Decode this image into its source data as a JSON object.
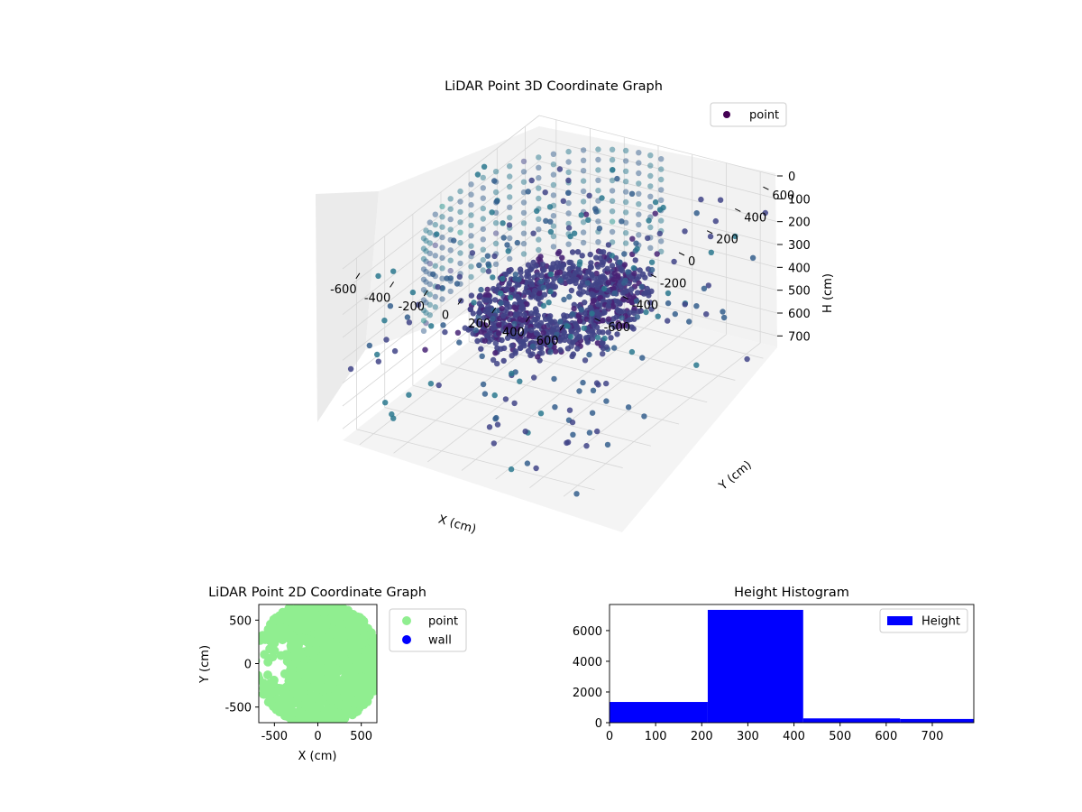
{
  "chart_data": [
    {
      "type": "scatter",
      "projection": "3d",
      "title": "LiDAR Point 3D Coordinate Graph",
      "xlabel": "X (cm)",
      "ylabel": "Y (cm)",
      "zlabel": "H (cm)",
      "xticks": [
        -600,
        -400,
        -200,
        0,
        200,
        400,
        600
      ],
      "yticks": [
        -600,
        -400,
        -200,
        0,
        200,
        400,
        600
      ],
      "zticks": [
        0,
        100,
        200,
        300,
        400,
        500,
        600,
        700
      ],
      "xlim": [
        -700,
        700
      ],
      "ylim": [
        -700,
        700
      ],
      "zlim": [
        0,
        750
      ],
      "z_inverted": true,
      "colormap": "viridis",
      "legend": {
        "placement": "top-right",
        "entries": [
          "point"
        ]
      },
      "legend_color": "#440154",
      "grid": true,
      "series": [
        {
          "name": "point",
          "description_points": "dense ring of points near H 300-400 cm, sparse outliers throughout"
        }
      ]
    },
    {
      "type": "scatter",
      "title": "LiDAR Point 2D Coordinate Graph",
      "xlabel": "X (cm)",
      "ylabel": "Y (cm)",
      "xticks": [
        -500,
        0,
        500
      ],
      "yticks": [
        -500,
        0,
        500
      ],
      "xlim": [
        -680,
        680
      ],
      "ylim": [
        -680,
        680
      ],
      "legend": {
        "placement": "outside-right",
        "entries": [
          "point",
          "wall"
        ]
      },
      "series": [
        {
          "name": "point",
          "color": "#90ee90"
        },
        {
          "name": "wall",
          "color": "#0000ff"
        }
      ]
    },
    {
      "type": "bar",
      "subtype": "histogram",
      "title": "Height Histogram",
      "xticks": [
        0,
        100,
        200,
        300,
        400,
        500,
        600,
        700
      ],
      "yticks": [
        0,
        2000,
        4000,
        6000
      ],
      "xlim": [
        0,
        790
      ],
      "ylim": [
        0,
        7700
      ],
      "bins": [
        {
          "start": 0,
          "end": 213,
          "count": 1350
        },
        {
          "start": 213,
          "end": 420,
          "count": 7350
        },
        {
          "start": 420,
          "end": 630,
          "count": 280
        },
        {
          "start": 630,
          "end": 790,
          "count": 240
        }
      ],
      "color": "#0000ff",
      "legend": {
        "placement": "top-right",
        "entries": [
          "Height"
        ]
      }
    }
  ]
}
